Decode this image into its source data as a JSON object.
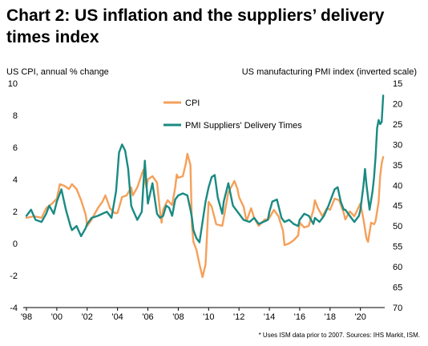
{
  "title": "Chart 2: US inflation and the suppliers’ delivery times index",
  "source_note": "* Uses ISM data prior to 2007. Sources: IHS Markit, ISM.",
  "colors": {
    "cpi": "#F5A05A",
    "pmi": "#1A8A83",
    "axis": "#000000"
  },
  "chart_data": {
    "type": "line",
    "left_axis": {
      "label": "US CPI, annual % change",
      "range": [
        -4,
        10
      ],
      "ticks": [
        -4,
        -2,
        0,
        2,
        4,
        6,
        8,
        10
      ]
    },
    "right_axis": {
      "label": "US manufacturing PMI index (inverted scale)",
      "range": [
        70,
        15
      ],
      "inverted": true,
      "ticks": [
        15,
        20,
        25,
        30,
        35,
        40,
        45,
        50,
        55,
        60,
        65,
        70
      ]
    },
    "x_axis": {
      "range": [
        1998,
        2021.6
      ],
      "ticks": [
        {
          "value": 1998,
          "label": "'98"
        },
        {
          "value": 2000,
          "label": "'00"
        },
        {
          "value": 2002,
          "label": "'02"
        },
        {
          "value": 2004,
          "label": "'04"
        },
        {
          "value": 2006,
          "label": "'06"
        },
        {
          "value": 2008,
          "label": "'08"
        },
        {
          "value": 2010,
          "label": "'10"
        },
        {
          "value": 2012,
          "label": "'12"
        },
        {
          "value": 2014,
          "label": "'14"
        },
        {
          "value": 2016,
          "label": "'16"
        },
        {
          "value": 2018,
          "label": "'18"
        },
        {
          "value": 2020,
          "label": "'20"
        }
      ]
    },
    "grid": false,
    "legend_position": "top-center",
    "series": [
      {
        "name": "CPI",
        "axis": "left",
        "points": [
          [
            1998.0,
            1.6
          ],
          [
            1998.5,
            1.7
          ],
          [
            1999.0,
            1.6
          ],
          [
            1999.3,
            2.2
          ],
          [
            1999.7,
            2.5
          ],
          [
            2000.0,
            2.8
          ],
          [
            2000.2,
            3.7
          ],
          [
            2000.5,
            3.6
          ],
          [
            2000.8,
            3.4
          ],
          [
            2001.0,
            3.7
          ],
          [
            2001.3,
            3.4
          ],
          [
            2001.6,
            2.7
          ],
          [
            2001.9,
            1.8
          ],
          [
            2002.0,
            1.1
          ],
          [
            2002.3,
            1.5
          ],
          [
            2002.7,
            2.2
          ],
          [
            2003.0,
            2.6
          ],
          [
            2003.2,
            3.0
          ],
          [
            2003.5,
            2.2
          ],
          [
            2003.8,
            1.9
          ],
          [
            2004.0,
            1.9
          ],
          [
            2004.3,
            2.9
          ],
          [
            2004.6,
            3.0
          ],
          [
            2004.9,
            3.5
          ],
          [
            2005.0,
            3.0
          ],
          [
            2005.3,
            3.5
          ],
          [
            2005.7,
            4.6
          ],
          [
            2005.9,
            3.5
          ],
          [
            2006.0,
            4.0
          ],
          [
            2006.3,
            4.2
          ],
          [
            2006.6,
            3.8
          ],
          [
            2006.8,
            2.0
          ],
          [
            2006.9,
            1.3
          ],
          [
            2007.0,
            2.1
          ],
          [
            2007.3,
            2.7
          ],
          [
            2007.6,
            2.4
          ],
          [
            2007.8,
            3.5
          ],
          [
            2007.9,
            4.3
          ],
          [
            2008.0,
            4.1
          ],
          [
            2008.3,
            4.2
          ],
          [
            2008.5,
            5.0
          ],
          [
            2008.6,
            5.6
          ],
          [
            2008.8,
            4.9
          ],
          [
            2008.9,
            1.1
          ],
          [
            2009.0,
            0.1
          ],
          [
            2009.2,
            -0.4
          ],
          [
            2009.4,
            -1.3
          ],
          [
            2009.6,
            -2.1
          ],
          [
            2009.8,
            -1.3
          ],
          [
            2010.0,
            2.6
          ],
          [
            2010.2,
            2.3
          ],
          [
            2010.5,
            1.2
          ],
          [
            2010.9,
            1.1
          ],
          [
            2011.0,
            1.6
          ],
          [
            2011.3,
            3.2
          ],
          [
            2011.7,
            3.9
          ],
          [
            2011.9,
            3.4
          ],
          [
            2012.0,
            2.9
          ],
          [
            2012.3,
            2.3
          ],
          [
            2012.5,
            1.4
          ],
          [
            2012.8,
            2.2
          ],
          [
            2013.0,
            1.6
          ],
          [
            2013.3,
            1.1
          ],
          [
            2013.7,
            1.5
          ],
          [
            2013.9,
            1.5
          ],
          [
            2014.0,
            1.6
          ],
          [
            2014.3,
            2.1
          ],
          [
            2014.6,
            1.7
          ],
          [
            2014.9,
            0.8
          ],
          [
            2015.0,
            -0.1
          ],
          [
            2015.3,
            0.0
          ],
          [
            2015.6,
            0.2
          ],
          [
            2015.9,
            0.5
          ],
          [
            2016.0,
            1.3
          ],
          [
            2016.3,
            1.0
          ],
          [
            2016.6,
            1.1
          ],
          [
            2016.9,
            2.1
          ],
          [
            2017.0,
            2.7
          ],
          [
            2017.2,
            2.2
          ],
          [
            2017.5,
            1.7
          ],
          [
            2017.8,
            2.2
          ],
          [
            2018.0,
            2.1
          ],
          [
            2018.3,
            2.8
          ],
          [
            2018.6,
            2.7
          ],
          [
            2018.9,
            1.9
          ],
          [
            2019.0,
            1.5
          ],
          [
            2019.3,
            2.0
          ],
          [
            2019.6,
            1.7
          ],
          [
            2019.9,
            2.3
          ],
          [
            2020.0,
            2.5
          ],
          [
            2020.2,
            1.5
          ],
          [
            2020.4,
            0.3
          ],
          [
            2020.5,
            0.1
          ],
          [
            2020.7,
            1.3
          ],
          [
            2020.9,
            1.2
          ],
          [
            2021.0,
            1.4
          ],
          [
            2021.2,
            2.6
          ],
          [
            2021.3,
            4.2
          ],
          [
            2021.4,
            5.0
          ],
          [
            2021.5,
            5.4
          ]
        ]
      },
      {
        "name": "PMI Suppliers' Delivery Times",
        "axis": "right",
        "points": [
          [
            1998.0,
            47.5
          ],
          [
            1998.3,
            46.0
          ],
          [
            1998.6,
            48.5
          ],
          [
            1999.0,
            49.0
          ],
          [
            1999.3,
            47.0
          ],
          [
            1999.5,
            45.0
          ],
          [
            1999.8,
            47.0
          ],
          [
            2000.0,
            44.0
          ],
          [
            2000.3,
            41.0
          ],
          [
            2000.6,
            46.0
          ],
          [
            2000.9,
            50.0
          ],
          [
            2001.0,
            51.0
          ],
          [
            2001.3,
            50.0
          ],
          [
            2001.6,
            52.5
          ],
          [
            2001.9,
            50.5
          ],
          [
            2002.0,
            49.5
          ],
          [
            2002.3,
            48.0
          ],
          [
            2002.7,
            47.5
          ],
          [
            2003.0,
            47.0
          ],
          [
            2003.3,
            46.5
          ],
          [
            2003.6,
            48.0
          ],
          [
            2003.9,
            41.5
          ],
          [
            2004.0,
            37.0
          ],
          [
            2004.1,
            32.0
          ],
          [
            2004.3,
            30.0
          ],
          [
            2004.5,
            31.5
          ],
          [
            2004.7,
            36.0
          ],
          [
            2004.9,
            45.0
          ],
          [
            2005.0,
            46.0
          ],
          [
            2005.3,
            48.5
          ],
          [
            2005.6,
            46.5
          ],
          [
            2005.8,
            34.0
          ],
          [
            2005.9,
            39.5
          ],
          [
            2006.0,
            44.5
          ],
          [
            2006.3,
            39.5
          ],
          [
            2006.6,
            47.0
          ],
          [
            2006.8,
            48.0
          ],
          [
            2007.0,
            47.5
          ],
          [
            2007.2,
            45.0
          ],
          [
            2007.4,
            45.5
          ],
          [
            2007.6,
            47.5
          ],
          [
            2007.8,
            43.5
          ],
          [
            2008.0,
            42.5
          ],
          [
            2008.3,
            42.0
          ],
          [
            2008.6,
            42.5
          ],
          [
            2008.8,
            46.0
          ],
          [
            2008.9,
            48.0
          ],
          [
            2009.0,
            51.0
          ],
          [
            2009.2,
            53.0
          ],
          [
            2009.4,
            54.0
          ],
          [
            2009.6,
            49.0
          ],
          [
            2009.8,
            44.0
          ],
          [
            2010.0,
            40.5
          ],
          [
            2010.2,
            38.0
          ],
          [
            2010.4,
            37.5
          ],
          [
            2010.6,
            43.0
          ],
          [
            2010.9,
            47.0
          ],
          [
            2011.0,
            44.0
          ],
          [
            2011.3,
            39.5
          ],
          [
            2011.6,
            45.0
          ],
          [
            2011.9,
            46.5
          ],
          [
            2012.0,
            47.0
          ],
          [
            2012.3,
            48.5
          ],
          [
            2012.7,
            49.0
          ],
          [
            2013.0,
            48.0
          ],
          [
            2013.3,
            49.5
          ],
          [
            2013.6,
            49.0
          ],
          [
            2013.9,
            48.5
          ],
          [
            2014.0,
            46.5
          ],
          [
            2014.2,
            44.0
          ],
          [
            2014.5,
            43.5
          ],
          [
            2014.8,
            48.0
          ],
          [
            2015.0,
            49.0
          ],
          [
            2015.3,
            48.5
          ],
          [
            2015.6,
            49.5
          ],
          [
            2015.9,
            50.0
          ],
          [
            2016.0,
            48.5
          ],
          [
            2016.3,
            47.0
          ],
          [
            2016.6,
            47.5
          ],
          [
            2016.9,
            49.5
          ],
          [
            2017.0,
            48.0
          ],
          [
            2017.3,
            49.0
          ],
          [
            2017.6,
            47.5
          ],
          [
            2017.9,
            45.0
          ],
          [
            2018.0,
            44.0
          ],
          [
            2018.3,
            41.0
          ],
          [
            2018.5,
            40.5
          ],
          [
            2018.7,
            44.0
          ],
          [
            2018.9,
            46.0
          ],
          [
            2019.0,
            46.0
          ],
          [
            2019.3,
            47.5
          ],
          [
            2019.6,
            49.0
          ],
          [
            2019.9,
            47.5
          ],
          [
            2020.0,
            46.0
          ],
          [
            2020.2,
            40.0
          ],
          [
            2020.3,
            36.0
          ],
          [
            2020.4,
            40.0
          ],
          [
            2020.6,
            46.0
          ],
          [
            2020.8,
            41.5
          ],
          [
            2020.9,
            38.0
          ],
          [
            2021.0,
            33.0
          ],
          [
            2021.1,
            26.0
          ],
          [
            2021.2,
            24.0
          ],
          [
            2021.3,
            25.0
          ],
          [
            2021.4,
            24.5
          ],
          [
            2021.5,
            18.0
          ]
        ]
      }
    ]
  }
}
